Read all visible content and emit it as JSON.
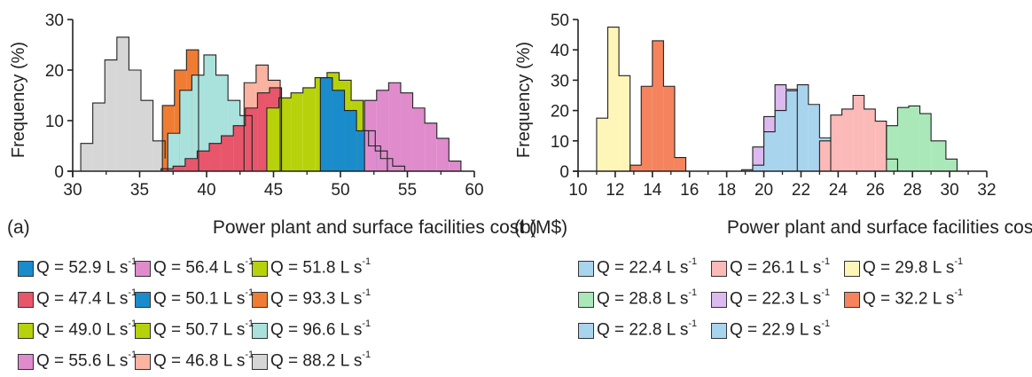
{
  "chart_data": [
    {
      "type": "histogram",
      "panel_label": "(a)",
      "xlabel": "Power plant and surface facilities cost (M$)",
      "ylabel": "Frequency (%)",
      "xlim": [
        30,
        60
      ],
      "ylim": [
        0,
        30
      ],
      "xticks": [
        "30",
        "35",
        "40",
        "45",
        "50",
        "55",
        "60"
      ],
      "yticks": [
        "0",
        "10",
        "20",
        "30"
      ],
      "grid": false,
      "legend_placement": "below",
      "series": [
        {
          "name": "Q = 88.2 L s",
          "color": "#d6d6d6",
          "edges": [
            30.6,
            31.5,
            32.4,
            33.3,
            34.2,
            35.1,
            36.0,
            36.9
          ],
          "values": [
            5.5,
            13.5,
            22,
            26.5,
            20,
            14,
            6,
            2.5
          ]
        },
        {
          "name": "Q = 93.3 L s",
          "color": "#f07c33",
          "edges": [
            36.7,
            37.6,
            38.5,
            39.4
          ],
          "values": [
            13,
            20,
            24
          ]
        },
        {
          "name": "Q = 96.6 L s",
          "color": "#a9e1dc",
          "edges": [
            37.1,
            38.0,
            38.9,
            39.8,
            40.7,
            41.6,
            42.5,
            43.4
          ],
          "values": [
            7.5,
            16,
            19,
            23,
            19,
            14,
            11
          ]
        },
        {
          "name": "Q = 46.8 L s",
          "color": "#f9b3a0",
          "edges": [
            42.8,
            43.7,
            44.6,
            45.5
          ],
          "values": [
            17.5,
            21,
            18
          ]
        },
        {
          "name": "Q = 47.4 L s",
          "color": "#e8566b",
          "edges": [
            36.6,
            37.5,
            38.4,
            39.3,
            40.2,
            41.1,
            42.0,
            42.9,
            43.8,
            44.7,
            45.6
          ],
          "values": [
            0.5,
            1,
            2.5,
            4,
            5.5,
            7,
            9,
            12.5,
            15.5,
            16.5
          ]
        },
        {
          "name": "Q = 49.0 L s",
          "color": "#b7d20b",
          "edges": [
            44.5,
            45.4,
            46.3,
            47.2,
            48.1,
            49.0,
            49.9,
            50.8,
            51.7,
            52.6,
            53.5
          ],
          "values": [
            12.5,
            14.5,
            15.5,
            16.5,
            18.5,
            19.5,
            18,
            14,
            8,
            4
          ]
        },
        {
          "name": "Q = 52.9 L s",
          "color": "#1a8ccc",
          "edges": [
            48.5,
            49.4,
            50.3,
            51.2,
            52.1,
            53.0,
            53.9,
            54.8
          ],
          "values": [
            18.5,
            16,
            12,
            8,
            5,
            2.5,
            1
          ]
        },
        {
          "name": "Q = 55.6 L s",
          "color": "#df8bcc",
          "edges": [
            51.8,
            52.7,
            53.6,
            54.5,
            55.4,
            56.3,
            57.2,
            58.1,
            59.0
          ],
          "values": [
            14,
            16,
            17.5,
            15.5,
            12.5,
            9.5,
            6.5,
            2
          ]
        },
        {
          "name": "Q = 50.1 L s",
          "color": "#1a8ccc",
          "edges": [],
          "values": []
        },
        {
          "name": "Q = 56.4 L s",
          "color": "#df8bcc",
          "edges": [],
          "values": []
        },
        {
          "name": "Q = 51.8 L s",
          "color": "#b7d20b",
          "edges": [],
          "values": []
        },
        {
          "name": "Q = 50.7 L s",
          "color": "#b7d20b",
          "edges": [],
          "values": []
        }
      ],
      "legend": [
        {
          "label": "Q = 52.9 L s",
          "exp": "-1",
          "color": "#1a8ccc"
        },
        {
          "label": "Q = 56.4 L s",
          "exp": "-1",
          "color": "#df8bcc"
        },
        {
          "label": "Q = 51.8 L s",
          "exp": "-1",
          "color": "#b7d20b"
        },
        {
          "label": "Q = 47.4 L s",
          "exp": "-1",
          "color": "#e8566b"
        },
        {
          "label": "Q = 50.1 L s",
          "exp": "-1",
          "color": "#1a8ccc"
        },
        {
          "label": "Q = 93.3 L s",
          "exp": "-1",
          "color": "#f07c33"
        },
        {
          "label": "Q = 49.0 L s",
          "exp": "-1",
          "color": "#b7d20b"
        },
        {
          "label": "Q = 50.7 L s",
          "exp": "-1",
          "color": "#b7d20b"
        },
        {
          "label": "Q = 96.6 L s",
          "exp": "-1",
          "color": "#a9e1dc"
        },
        {
          "label": "Q = 55.6 L s",
          "exp": "-1",
          "color": "#df8bcc"
        },
        {
          "label": "Q = 46.8 L s",
          "exp": "-1",
          "color": "#f9b3a0"
        },
        {
          "label": "Q = 88.2 L s",
          "exp": "-1",
          "color": "#d6d6d6"
        }
      ]
    },
    {
      "type": "histogram",
      "panel_label": "(b)",
      "xlabel": "Power plant and surface facilities cost (M$)",
      "ylabel": "Frequency (%)",
      "xlim": [
        10,
        32
      ],
      "ylim": [
        0,
        50
      ],
      "xticks": [
        "10",
        "12",
        "14",
        "16",
        "18",
        "20",
        "22",
        "24",
        "26",
        "28",
        "30",
        "32"
      ],
      "yticks": [
        "0",
        "10",
        "20",
        "30",
        "40",
        "50"
      ],
      "grid": false,
      "legend_placement": "below",
      "series": [
        {
          "name": "Q = 29.8 L s",
          "color": "#fef5b8",
          "edges": [
            11.0,
            11.6,
            12.2,
            12.8
          ],
          "values": [
            17.5,
            47.5,
            31.5
          ]
        },
        {
          "name": "Q = 32.2 L s",
          "color": "#f5845e",
          "edges": [
            12.8,
            13.4,
            14.0,
            14.6,
            15.2,
            15.8
          ],
          "values": [
            2,
            28,
            43,
            28,
            4.5
          ]
        },
        {
          "name": "Q = 22.3 L s",
          "color": "#dcb9ef",
          "edges": [
            18.8,
            19.4,
            20.0,
            20.6,
            21.2,
            21.8
          ],
          "values": [
            0.5,
            8,
            18,
            28.5,
            27
          ]
        },
        {
          "name": "Q = 22.4 L s",
          "color": "#a9d4ee",
          "edges": [
            19.4,
            20.0,
            20.6,
            21.2,
            21.8,
            22.4,
            23.0,
            23.6
          ],
          "values": [
            2,
            13,
            20,
            26.5,
            28.5,
            22,
            11
          ]
        },
        {
          "name": "Q = 26.1 L s",
          "color": "#fbb9b8",
          "edges": [
            23.0,
            23.6,
            24.2,
            24.8,
            25.4,
            26.0,
            26.6,
            27.2
          ],
          "values": [
            10,
            18.5,
            20.5,
            25,
            20.5,
            16.5,
            4
          ]
        },
        {
          "name": "Q = 28.8 L s",
          "color": "#aae8b9",
          "edges": [
            26.6,
            27.2,
            27.8,
            28.4,
            29.0,
            29.8,
            30.4
          ],
          "values": [
            15,
            21,
            21.5,
            19,
            10,
            4
          ]
        },
        {
          "name": "Q = 22.8 L s",
          "color": "#a9d4ee",
          "edges": [],
          "values": []
        },
        {
          "name": "Q = 22.9 L s",
          "color": "#a9d4ee",
          "edges": [],
          "values": []
        }
      ],
      "legend": [
        {
          "label": "Q = 22.4 L s",
          "exp": "-1",
          "color": "#a9d4ee"
        },
        {
          "label": "Q = 26.1 L s",
          "exp": "-1",
          "color": "#fbb9b8"
        },
        {
          "label": "Q = 29.8 L s",
          "exp": "-1",
          "color": "#fef5b8"
        },
        {
          "label": "Q = 28.8 L s",
          "exp": "-1",
          "color": "#aae8b9"
        },
        {
          "label": "Q = 22.3 L s",
          "exp": "-1",
          "color": "#dcb9ef"
        },
        {
          "label": "Q = 32.2 L s",
          "exp": "-1",
          "color": "#f5845e"
        },
        {
          "label": "Q = 22.8 L s",
          "exp": "-1",
          "color": "#a9d4ee"
        },
        {
          "label": "Q = 22.9 L s",
          "exp": "-1",
          "color": "#a9d4ee"
        }
      ]
    }
  ]
}
